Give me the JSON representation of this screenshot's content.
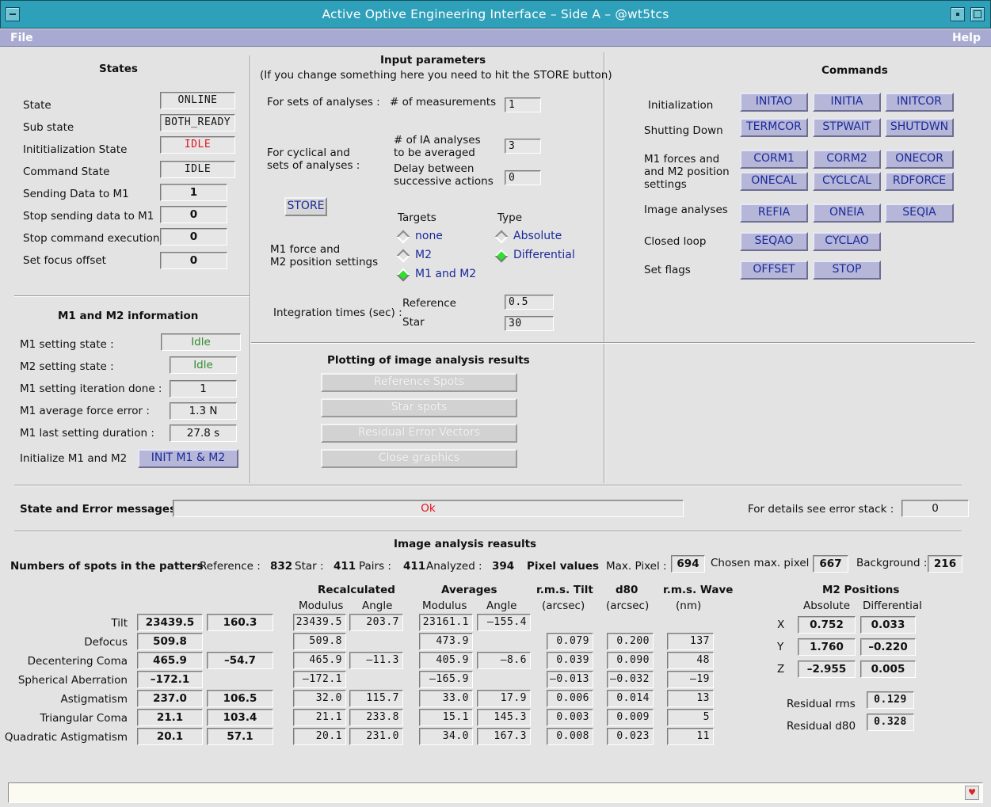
{
  "window": {
    "title": "Active Optive Engineering Interface  –  Side A  –  @wt5tcs"
  },
  "menu": {
    "file": "File",
    "help": "Help"
  },
  "states": {
    "heading": "States",
    "rows": [
      {
        "label": "State",
        "value": "ONLINE"
      },
      {
        "label": "Sub state",
        "value": "BOTH_READY"
      },
      {
        "label": "Inititialization State",
        "value": "IDLE"
      },
      {
        "label": "Command State",
        "value": "IDLE"
      },
      {
        "label": "Sending Data to M1",
        "value": "1"
      },
      {
        "label": "Stop sending data to M1",
        "value": "0"
      },
      {
        "label": "Stop command execution",
        "value": "0"
      },
      {
        "label": "Set focus offset",
        "value": "0"
      }
    ]
  },
  "m1m2": {
    "heading": "M1 and M2 information",
    "rows": [
      {
        "label": "M1 setting state :",
        "value": "Idle"
      },
      {
        "label": "M2 setting state :",
        "value": "Idle"
      },
      {
        "label": "M1 setting iteration done :",
        "value": "1"
      },
      {
        "label": "M1 average force error :",
        "value": "1.3 N"
      },
      {
        "label": "M1 last setting duration :",
        "value": "27.8 s"
      }
    ],
    "init_label": "Initialize M1 and M2",
    "init_button": "INIT M1 & M2"
  },
  "input": {
    "heading": "Input parameters",
    "subheading": "(If you change something here you need to hit the STORE button)",
    "sets_label": "For sets of analyses :",
    "num_meas_label": "# of measurements",
    "num_meas_value": "1",
    "cyclical_label1": "For cyclical and",
    "cyclical_label2": "sets of analyses :",
    "ia_label1": "# of IA analyses",
    "ia_label2": "to be averaged",
    "ia_value": "3",
    "delay_label1": "Delay between",
    "delay_label2": "successive actions",
    "delay_value": "0",
    "store_button": "STORE",
    "targets_label": "Targets",
    "type_label": "Type",
    "targets": [
      "none",
      "M2",
      "M1 and M2"
    ],
    "target_selected": 2,
    "types": [
      "Absolute",
      "Differential"
    ],
    "type_selected": 1,
    "m1force_label1": "M1 force and",
    "m1force_label2": "M2 position settings",
    "integration_label": "Integration times (sec) :",
    "reference_label": "Reference",
    "reference_value": "0.5",
    "star_label": "Star",
    "star_value": "30"
  },
  "commands": {
    "heading": "Commands",
    "initialization_label": "Initialization",
    "initialization": [
      "INITAO",
      "INITIA",
      "INITCOR"
    ],
    "shutdown_label": "Shutting Down",
    "shutdown": [
      "TERMCOR",
      "STPWAIT",
      "SHUTDWN"
    ],
    "m1forces_label1": "M1 forces and",
    "m1forces_label2": "and M2 position",
    "m1forces_label3": "settings",
    "m1forces_row1": [
      "CORM1",
      "CORM2",
      "ONECOR"
    ],
    "m1forces_row2": [
      "ONECAL",
      "CYCLCAL",
      "RDFORCE"
    ],
    "image_label": "Image analyses",
    "image": [
      "REFIA",
      "ONEIA",
      "SEQIA"
    ],
    "closed_label": "Closed loop",
    "closed": [
      "SEQAO",
      "CYCLAO"
    ],
    "flags_label": "Set flags",
    "flags": [
      "OFFSET",
      "STOP"
    ]
  },
  "plotting": {
    "heading": "Plotting of image analysis results",
    "buttons": [
      "Reference Spots",
      "Star spots",
      "Residual Error Vectors",
      "Close graphics"
    ]
  },
  "messages": {
    "label": "State and Error messages :",
    "value": "Ok",
    "details_label": "For details see error stack :",
    "details_value": "0"
  },
  "results": {
    "heading": "Image analysis reasults",
    "spots_label": "Numbers of spots in the patters",
    "reference_label": "Reference :",
    "reference_value": "832",
    "star_label": "Star :",
    "star_value": "411",
    "pairs_label": "Pairs :",
    "pairs_value": "411",
    "analyzed_label": "Analyzed :",
    "analyzed_value": "394",
    "pixel_values_label": "Pixel values",
    "max_pixel_label": "Max. Pixel :",
    "max_pixel_value": "694",
    "chosen_label": "Chosen max. pixel :",
    "chosen_value": "667",
    "background_label": "Background :",
    "background_value": "216",
    "headers": {
      "recalculated": "Recalculated",
      "averages": "Averages",
      "modulus": "Modulus",
      "angle": "Angle",
      "rms_tilt": "r.m.s.  Tilt",
      "arcsec": "(arcsec)",
      "d80": "d80",
      "rms_wave": "r.m.s. Wave",
      "nm": "(nm)"
    },
    "rows": [
      {
        "name": "Tilt",
        "v1": "23439.5",
        "v2": "160.3",
        "rmod": "23439.5",
        "rang": "203.7",
        "amod": "23161.1",
        "aang": "–155.4",
        "tilt": "",
        "d80": "",
        "wave": ""
      },
      {
        "name": "Defocus",
        "v1": "509.8",
        "v2": "",
        "rmod": "509.8",
        "rang": "",
        "amod": "473.9",
        "aang": "",
        "tilt": "0.079",
        "d80": "0.200",
        "wave": "137"
      },
      {
        "name": "Decentering Coma",
        "v1": "465.9",
        "v2": "–54.7",
        "rmod": "465.9",
        "rang": "–11.3",
        "amod": "405.9",
        "aang": "–8.6",
        "tilt": "0.039",
        "d80": "0.090",
        "wave": "48"
      },
      {
        "name": "Spherical Aberration",
        "v1": "–172.1",
        "v2": "",
        "rmod": "–172.1",
        "rang": "",
        "amod": "–165.9",
        "aang": "",
        "tilt": "–0.013",
        "d80": "–0.032",
        "wave": "–19"
      },
      {
        "name": "Astigmatism",
        "v1": "237.0",
        "v2": "106.5",
        "rmod": "32.0",
        "rang": "115.7",
        "amod": "33.0",
        "aang": "17.9",
        "tilt": "0.006",
        "d80": "0.014",
        "wave": "13"
      },
      {
        "name": "Triangular Coma",
        "v1": "21.1",
        "v2": "103.4",
        "rmod": "21.1",
        "rang": "233.8",
        "amod": "15.1",
        "aang": "145.3",
        "tilt": "0.003",
        "d80": "0.009",
        "wave": "5"
      },
      {
        "name": "Quadratic Astigmatism",
        "v1": "20.1",
        "v2": "57.1",
        "rmod": "20.1",
        "rang": "231.0",
        "amod": "34.0",
        "aang": "167.3",
        "tilt": "0.008",
        "d80": "0.023",
        "wave": "11"
      }
    ],
    "m2": {
      "heading": "M2 Positions",
      "absolute": "Absolute",
      "differential": "Differential",
      "rows": [
        {
          "axis": "X",
          "abs": "0.752",
          "diff": "0.033"
        },
        {
          "axis": "Y",
          "abs": "1.760",
          "diff": "–0.220"
        },
        {
          "axis": "Z",
          "abs": "–2.955",
          "diff": "0.005"
        }
      ],
      "residual_rms_label": "Residual rms",
      "residual_rms_value": "0.129",
      "residual_d80_label": "Residual d80",
      "residual_d80_value": "0.328"
    }
  },
  "icons": {
    "minimize": "minimize-icon",
    "maximize": "maximize-icon",
    "close": "close-icon",
    "status": "heart-icon"
  },
  "colors": {
    "titlebar": "#2fa0b9",
    "menubar": "#a8aad1",
    "button": "#b6b7d8",
    "button_text": "#1a2a9a",
    "alert": "#e0141e",
    "ok_green": "#2e8b2e",
    "radio_on": "#2fe02f"
  }
}
